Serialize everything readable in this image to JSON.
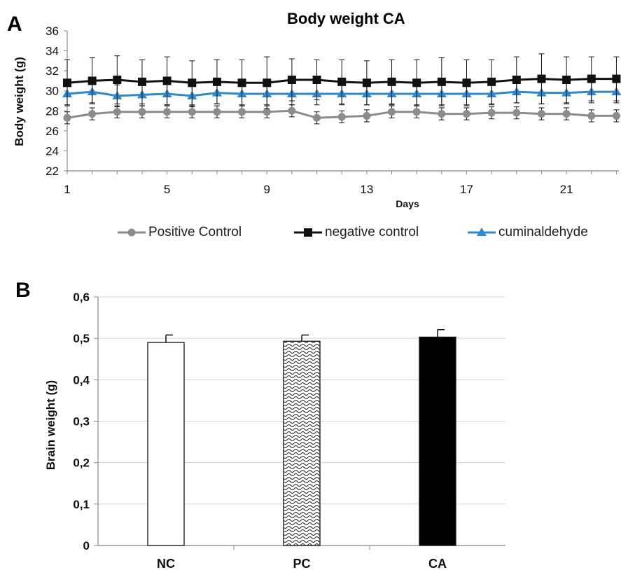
{
  "chart_data": [
    {
      "panel": "A",
      "type": "line",
      "title": "Body weight CA",
      "xlabel": "Days",
      "ylabel": "Body weight (g)",
      "ylim": [
        22,
        36
      ],
      "yticks": [
        "22",
        "24",
        "26",
        "28",
        "30",
        "32",
        "34",
        "36"
      ],
      "xticks": [
        "1",
        "5",
        "9",
        "13",
        "17",
        "21"
      ],
      "x": [
        1,
        2,
        3,
        4,
        5,
        6,
        7,
        8,
        9,
        10,
        11,
        12,
        13,
        14,
        15,
        16,
        17,
        18,
        19,
        20,
        21,
        22,
        23
      ],
      "series": [
        {
          "name": "Positive Control",
          "color": "#8c8c8c",
          "marker": "circle",
          "values": [
            27.3,
            27.7,
            27.9,
            27.9,
            27.9,
            27.9,
            27.9,
            27.9,
            27.9,
            28.0,
            27.3,
            27.4,
            27.5,
            27.9,
            27.9,
            27.7,
            27.7,
            27.8,
            27.8,
            27.7,
            27.7,
            27.5,
            27.5
          ],
          "error": [
            0.6,
            0.6,
            0.6,
            0.6,
            0.6,
            0.6,
            0.6,
            0.6,
            0.6,
            0.6,
            0.6,
            0.6,
            0.6,
            0.6,
            0.6,
            0.6,
            0.6,
            0.6,
            0.6,
            0.6,
            0.6,
            0.6,
            0.6
          ]
        },
        {
          "name": "negative control",
          "color": "#111111",
          "marker": "square",
          "values": [
            30.8,
            31.0,
            31.1,
            30.9,
            31.0,
            30.8,
            30.9,
            30.8,
            30.8,
            31.1,
            31.1,
            30.9,
            30.8,
            30.9,
            30.8,
            30.9,
            30.8,
            30.9,
            31.1,
            31.2,
            31.1,
            31.2,
            31.2
          ],
          "error": [
            2.3,
            2.3,
            2.4,
            2.2,
            2.4,
            2.2,
            2.2,
            2.3,
            2.6,
            2.1,
            2.0,
            2.2,
            2.2,
            2.2,
            2.3,
            2.4,
            2.3,
            2.2,
            2.3,
            2.5,
            2.3,
            2.2,
            2.2
          ]
        },
        {
          "name": "cuminaldehyde",
          "color": "#2f87cc",
          "marker": "triangle",
          "values": [
            29.7,
            29.9,
            29.5,
            29.6,
            29.7,
            29.5,
            29.8,
            29.7,
            29.7,
            29.7,
            29.7,
            29.7,
            29.7,
            29.7,
            29.7,
            29.7,
            29.7,
            29.7,
            29.9,
            29.8,
            29.8,
            29.9,
            29.9
          ],
          "error": [
            1.1,
            1.1,
            1.1,
            1.1,
            1.1,
            1.1,
            1.1,
            1.1,
            1.1,
            1.1,
            1.1,
            1.1,
            1.1,
            1.1,
            1.1,
            1.1,
            1.1,
            1.1,
            1.1,
            1.1,
            1.1,
            1.1,
            1.1
          ]
        }
      ],
      "legend_position": "bottom",
      "grid": false
    },
    {
      "panel": "B",
      "type": "bar",
      "title": "",
      "xlabel": "",
      "ylabel": "Brain weight (g)",
      "ylim": [
        0,
        0.6
      ],
      "yticks": [
        "0",
        "0,1",
        "0,2",
        "0,3",
        "0,4",
        "0,5",
        "0,6"
      ],
      "categories": [
        "NC",
        "PC",
        "CA"
      ],
      "values": [
        0.49,
        0.493,
        0.503
      ],
      "error": [
        0.018,
        0.015,
        0.018
      ],
      "fills": [
        "white",
        "hatched",
        "black"
      ],
      "gridline_color": "#c8d4ec",
      "grid": true
    }
  ],
  "panel_labels": {
    "a": "A",
    "b": "B"
  }
}
